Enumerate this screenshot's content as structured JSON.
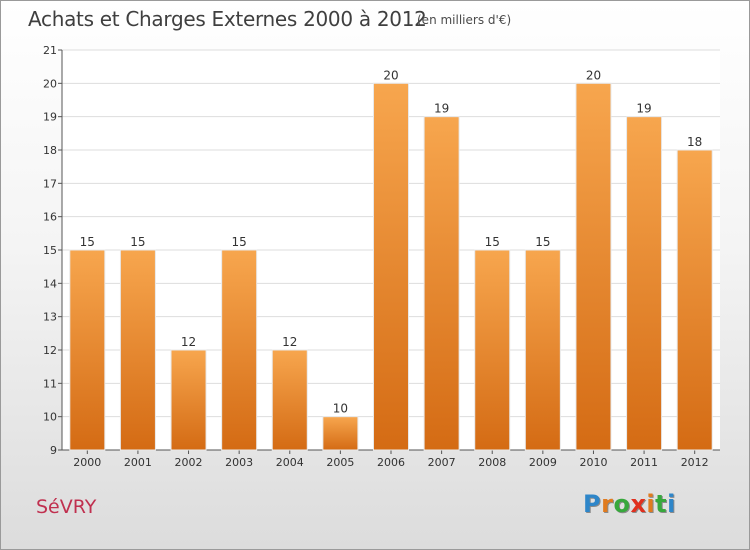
{
  "header": {
    "title": "Achats et Charges Externes 2000 à 2012",
    "unit": "(en milliers d'€)"
  },
  "footer": {
    "commune": "SéVRY",
    "logo_letters": [
      "P",
      "r",
      "o",
      "x",
      "i",
      "t",
      "i"
    ],
    "logo_colors": [
      "#2e86c9",
      "#e07b1f",
      "#37a83c",
      "#e0301e",
      "#e07b1f",
      "#37a83c",
      "#2e86c9"
    ]
  },
  "chart_data": {
    "type": "bar",
    "categories": [
      "2000",
      "2001",
      "2002",
      "2003",
      "2004",
      "2005",
      "2006",
      "2007",
      "2008",
      "2009",
      "2010",
      "2011",
      "2012"
    ],
    "values": [
      15,
      15,
      12,
      15,
      12,
      10,
      20,
      19,
      15,
      15,
      20,
      19,
      18
    ],
    "title": "Achats et Charges Externes 2000 à 2012",
    "xlabel": "",
    "ylabel": "",
    "ylim": [
      9,
      21
    ],
    "yticks": [
      9,
      10,
      11,
      12,
      13,
      14,
      15,
      16,
      17,
      18,
      19,
      20,
      21
    ],
    "grid": true,
    "bar_color": "#f29a3c",
    "bar_color_dark": "#d46b14"
  }
}
